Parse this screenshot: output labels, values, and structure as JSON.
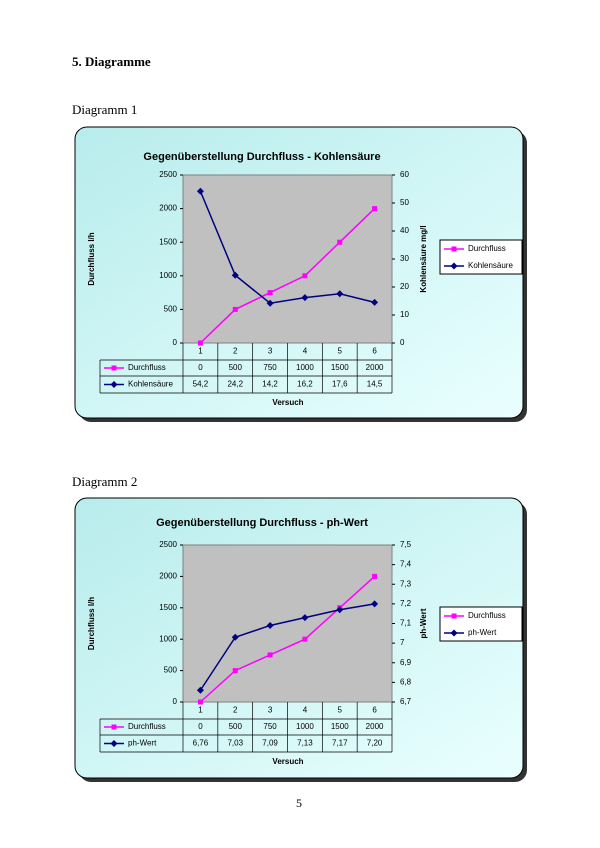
{
  "heading": "5. Diagramme",
  "captions": [
    "Diagramm 1",
    "Diagramm 2"
  ],
  "page_number": "5",
  "chart_data": [
    {
      "type": "line",
      "title": "Gegenüberstellung Durchfluss - Kohlensäure",
      "x_label": "Versuch",
      "y_label": "Durchfluss l/h",
      "y2_label": "Kohlensäure mg/l",
      "categories": [
        "1",
        "2",
        "3",
        "4",
        "5",
        "6"
      ],
      "ylim": [
        0,
        2500
      ],
      "yticks": [
        0,
        500,
        1000,
        1500,
        2000,
        2500
      ],
      "y2lim": [
        0,
        60
      ],
      "y2ticks": [
        0,
        10,
        20,
        30,
        40,
        50,
        60
      ],
      "legend": "right",
      "series": [
        {
          "name": "Durchfluss",
          "color": "#ff00ff",
          "marker": "square",
          "axis": "y",
          "values": [
            0,
            500,
            750,
            1000,
            1500,
            2000
          ]
        },
        {
          "name": "Kohlensäure",
          "color": "#000080",
          "marker": "diamond",
          "axis": "y2",
          "values": [
            54.2,
            24.2,
            14.2,
            16.2,
            17.6,
            14.5
          ],
          "value_labels": [
            "54,2",
            "24,2",
            "14,2",
            "16,2",
            "17,6",
            "14,5"
          ]
        }
      ]
    },
    {
      "type": "line",
      "title": "Gegenüberstellung Durchfluss - ph-Wert",
      "x_label": "Versuch",
      "y_label": "Durchfluss l/h",
      "y2_label": "ph-Wert",
      "categories": [
        "1",
        "2",
        "3",
        "4",
        "5",
        "6"
      ],
      "ylim": [
        0,
        2500
      ],
      "yticks": [
        0,
        500,
        1000,
        1500,
        2000,
        2500
      ],
      "y2lim": [
        6.7,
        7.5
      ],
      "y2ticks": [
        {
          "value": 6.7,
          "label": "6,7"
        },
        {
          "value": 6.8,
          "label": "6,8"
        },
        {
          "value": 6.9,
          "label": "6,9"
        },
        {
          "value": 7,
          "label": "7"
        },
        {
          "value": 7.1,
          "label": "7,1"
        },
        {
          "value": 7.2,
          "label": "7,2"
        },
        {
          "value": 7.3,
          "label": "7,3"
        },
        {
          "value": 7.4,
          "label": "7,4"
        },
        {
          "value": 7.5,
          "label": "7,5"
        }
      ],
      "legend": "right",
      "series": [
        {
          "name": "Durchfluss",
          "color": "#ff00ff",
          "marker": "square",
          "axis": "y",
          "values": [
            0,
            500,
            750,
            1000,
            1500,
            2000
          ]
        },
        {
          "name": "ph-Wert",
          "color": "#000080",
          "marker": "diamond",
          "axis": "y2",
          "values": [
            6.76,
            7.03,
            7.09,
            7.13,
            7.17,
            7.2
          ],
          "value_labels": [
            "6,76",
            "7,03",
            "7,09",
            "7,13",
            "7,17",
            "7,20"
          ]
        }
      ]
    }
  ]
}
